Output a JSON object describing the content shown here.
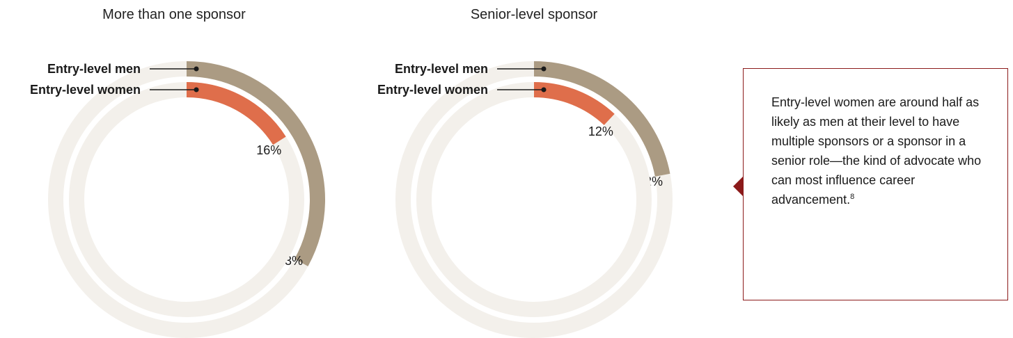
{
  "chart_data": [
    {
      "type": "donut",
      "title": "More than one sponsor",
      "series": [
        {
          "name": "Entry-level men",
          "value": 33,
          "label": "33%"
        },
        {
          "name": "Entry-level women",
          "value": 16,
          "label": "16%"
        }
      ]
    },
    {
      "type": "donut",
      "title": "Senior-level sponsor",
      "series": [
        {
          "name": "Entry-level men",
          "value": 22,
          "label": "22%"
        },
        {
          "name": "Entry-level women",
          "value": 12,
          "label": "12%"
        }
      ]
    }
  ],
  "colors": {
    "men": "#ab9b83",
    "women": "#df6e4b",
    "track": "#f3f0eb",
    "callout_border": "#8b1a1a"
  },
  "callout": {
    "text": "Entry-level women are around half as likely as men at their level to have multiple sponsors or a sponsor in a senior role—the kind of advocate who can most influence career advancement.",
    "footnote": "8"
  }
}
